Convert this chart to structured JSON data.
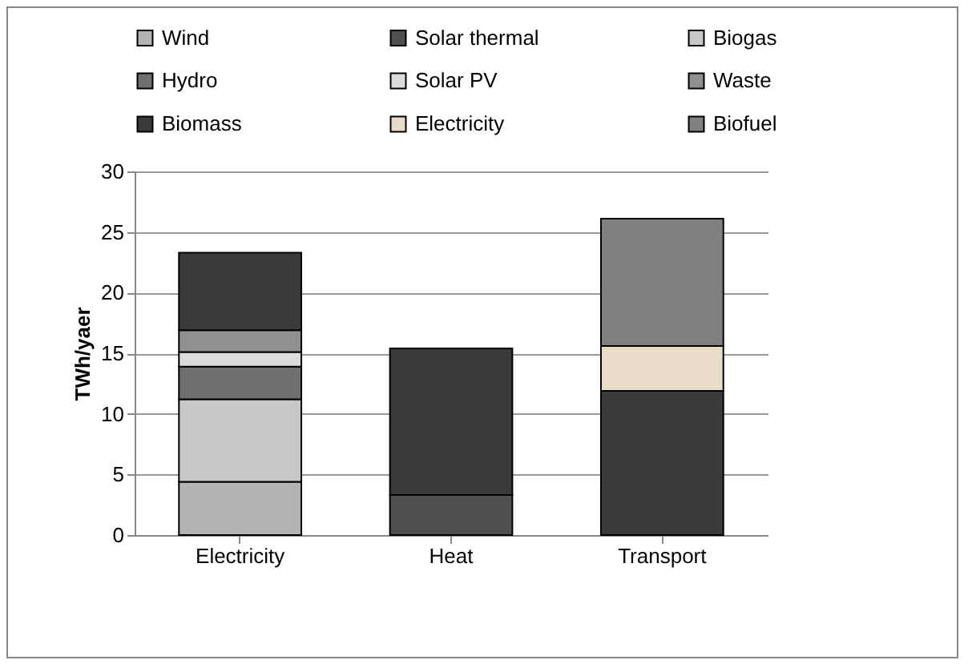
{
  "chart_data": {
    "type": "bar",
    "ylabel": "TWh/yaer",
    "categories": [
      "Electricity",
      "Heat",
      "Transport"
    ],
    "stacked": true,
    "series": [
      {
        "name": "Wind",
        "color": "#b4b4b4",
        "values": [
          4.4,
          null,
          null
        ]
      },
      {
        "name": "Solar thermal",
        "color": "#505050",
        "values": [
          null,
          3.3,
          null
        ]
      },
      {
        "name": "Biogas",
        "color": "#c8c8c8",
        "values": [
          6.8,
          null,
          null
        ]
      },
      {
        "name": "Hydro",
        "color": "#707070",
        "values": [
          2.7,
          null,
          null
        ]
      },
      {
        "name": "Solar PV",
        "color": "#dcdcdc",
        "values": [
          1.2,
          null,
          null
        ]
      },
      {
        "name": "Waste",
        "color": "#909090",
        "values": [
          1.8,
          null,
          null
        ]
      },
      {
        "name": "Biomass",
        "color": "#3a3a3a",
        "values": [
          6.4,
          12.1,
          11.9
        ]
      },
      {
        "name": "Electricity",
        "color": "#e8dcc8",
        "values": [
          null,
          null,
          3.7
        ]
      },
      {
        "name": "Biofuel",
        "color": "#808080",
        "values": [
          null,
          null,
          10.5
        ]
      }
    ],
    "ylim": [
      0,
      30
    ],
    "yticks": [
      0,
      5,
      10,
      15,
      20,
      25,
      30
    ],
    "grid": "y",
    "legend": "top"
  }
}
